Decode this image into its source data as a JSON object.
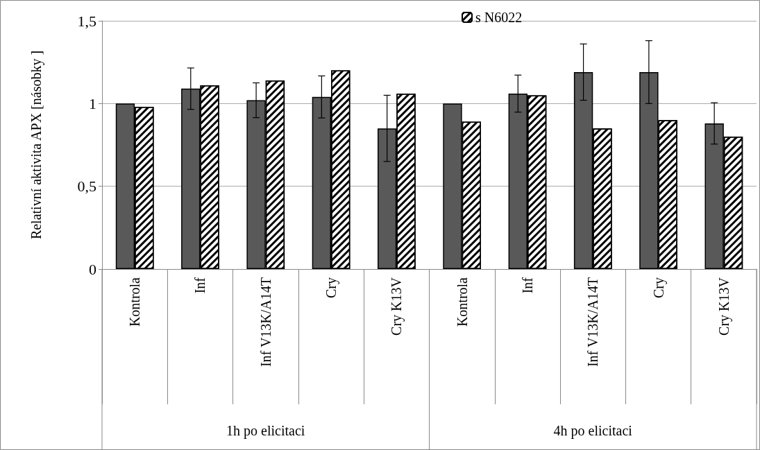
{
  "chart_data": {
    "type": "bar",
    "ylabel": "Relativní aktivita APX [násobky ]",
    "categories": [
      "Kontrola",
      "Inf",
      "Inf V13K/A14T",
      "Cry",
      "Cry K13V",
      "Kontrola",
      "Inf",
      "Inf V13K/A14T",
      "Cry",
      "Cry K13V"
    ],
    "series": [
      {
        "color": "#595959",
        "values": [
          1.0,
          1.09,
          1.02,
          1.04,
          0.85,
          1.0,
          1.06,
          1.19,
          1.19,
          0.88
        ],
        "errors": [
          null,
          0.125,
          0.105,
          0.127,
          0.2,
          null,
          0.112,
          0.17,
          0.19,
          0.125
        ]
      },
      {
        "name": "s N6022",
        "color": "#ffffff",
        "values": [
          0.98,
          1.11,
          1.14,
          1.2,
          1.06,
          0.89,
          1.05,
          0.85,
          0.9,
          0.8
        ]
      }
    ],
    "annotations": [
      "1h po elicitaci",
      "4h po elicitaci"
    ],
    "ylim": [
      0,
      1.5
    ],
    "yticks": [
      0,
      {
        "value": 0.5,
        "label": "0,5"
      },
      1,
      {
        "value": 1.5,
        "label": "1,5"
      }
    ],
    "grid": "y",
    "legend": "top"
  }
}
